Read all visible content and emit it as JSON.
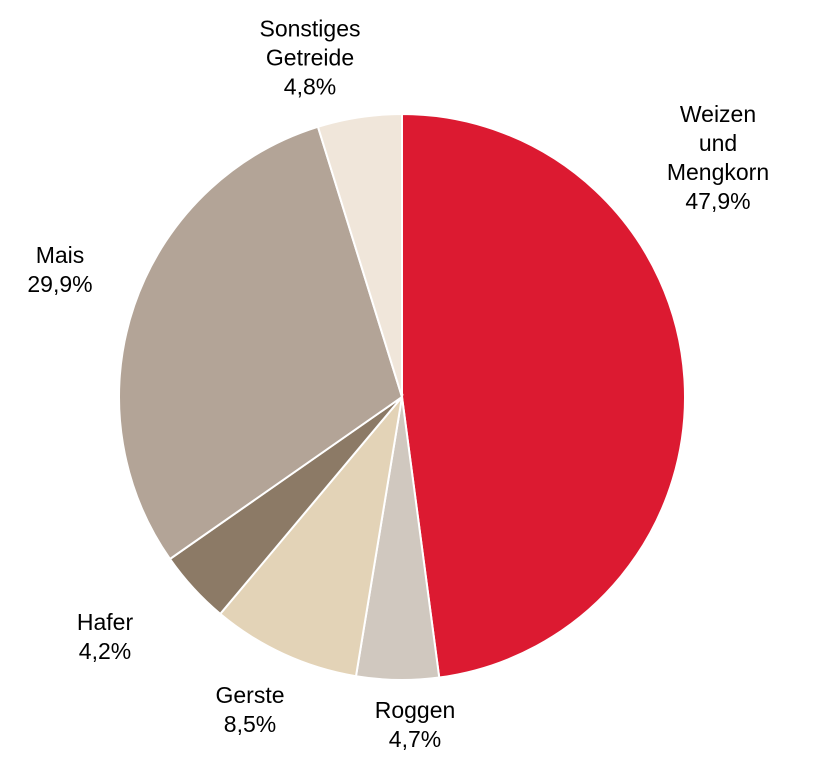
{
  "chart_data": {
    "type": "pie",
    "categories": [
      "Weizen und Mengkorn",
      "Roggen",
      "Gerste",
      "Hafer",
      "Mais",
      "Sonstiges Getreide"
    ],
    "values": [
      47.9,
      4.7,
      8.5,
      4.2,
      29.9,
      4.8
    ],
    "value_labels": [
      "47,9%",
      "4,7%",
      "8,5%",
      "4,2%",
      "29,9%",
      "4,8%"
    ],
    "colors": [
      "#dc1a31",
      "#d0c8bf",
      "#e3d3b7",
      "#8c7a66",
      "#b3a497",
      "#f0e6da"
    ]
  }
}
